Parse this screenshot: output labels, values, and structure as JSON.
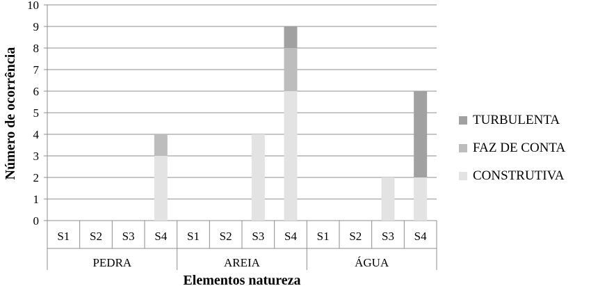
{
  "chart_data": {
    "type": "bar",
    "stacked": true,
    "xlabel": "Elementos natureza",
    "ylabel": "Número de ocorrência",
    "ylim": [
      0,
      10
    ],
    "yticks": [
      0,
      1,
      2,
      3,
      4,
      5,
      6,
      7,
      8,
      9,
      10
    ],
    "grid": true,
    "legend_position": "right",
    "groups": [
      "PEDRA",
      "AREIA",
      "ÁGUA"
    ],
    "subcategories": [
      "S1",
      "S2",
      "S3",
      "S4"
    ],
    "series": [
      {
        "name": "CONSTRUTIVA",
        "color": "#e3e3e3",
        "values": [
          [
            0,
            0,
            0,
            3
          ],
          [
            0,
            0,
            4,
            6
          ],
          [
            0,
            0,
            2,
            2
          ]
        ]
      },
      {
        "name": "FAZ DE CONTA",
        "color": "#bdbdbd",
        "values": [
          [
            0,
            0,
            0,
            1
          ],
          [
            0,
            0,
            0,
            2
          ],
          [
            0,
            0,
            0,
            0
          ]
        ]
      },
      {
        "name": "TURBULENTA",
        "color": "#a1a1a1",
        "values": [
          [
            0,
            0,
            0,
            0
          ],
          [
            0,
            0,
            0,
            1
          ],
          [
            0,
            0,
            0,
            4
          ]
        ]
      }
    ],
    "legend_order": [
      "TURBULENTA",
      "FAZ DE CONTA",
      "CONSTRUTIVA"
    ]
  }
}
